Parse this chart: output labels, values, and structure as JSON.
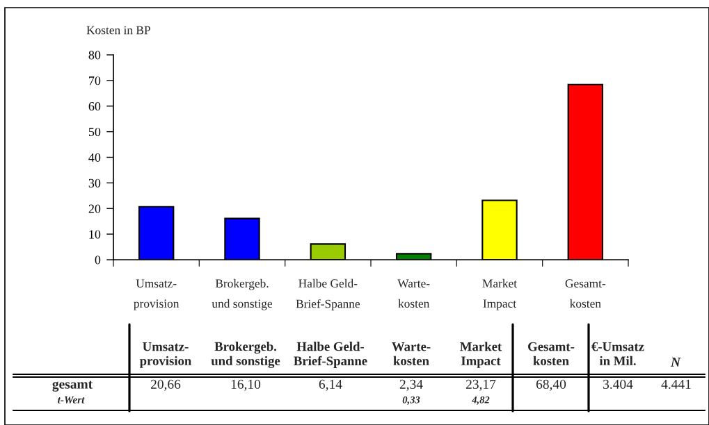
{
  "chart_data": {
    "type": "bar",
    "ylabel": "Kosten in BP",
    "categories": [
      "Umsatz-\nprovision",
      "Brokergeb.\nund sonstige",
      "Halbe Geld-\nBrief-Spanne",
      "Warte-\nkosten",
      "Market\nImpact",
      "Gesamt-\nkosten"
    ],
    "values": [
      20.66,
      16.1,
      6.14,
      2.34,
      23.17,
      68.4
    ],
    "colors": [
      "#0000ff",
      "#0000ff",
      "#99cc00",
      "#008000",
      "#ffff00",
      "#ff0000"
    ],
    "value_labels": [
      "20,66",
      "16,10",
      "6,14",
      "2,34",
      "23,17",
      "68,40"
    ],
    "ylim": [
      0,
      80
    ],
    "yticks": [
      0,
      10,
      20,
      30,
      40,
      50,
      60,
      70,
      80
    ],
    "annotations": [
      "gesamt",
      "t-Wert",
      "€-Umsatz\nin Mil.",
      "3.404",
      "N",
      "4.441",
      "0,33",
      "4,82"
    ]
  }
}
